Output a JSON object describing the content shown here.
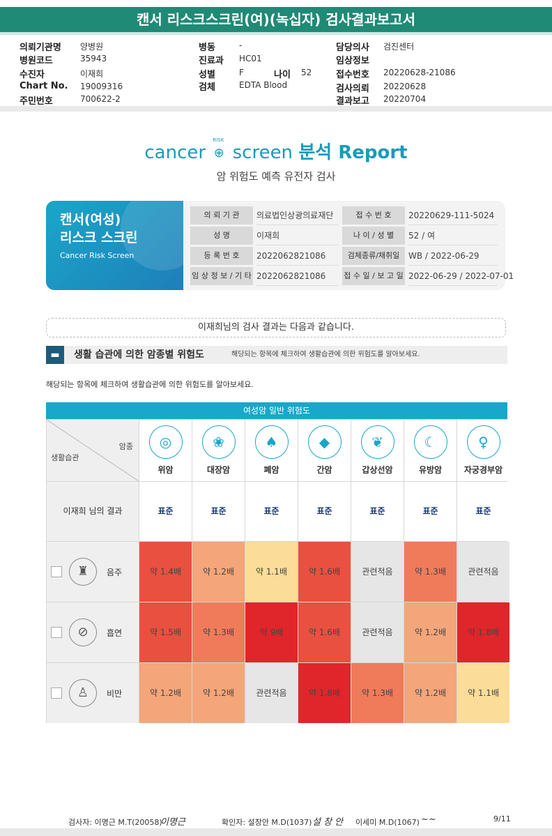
{
  "title": "캔서 리스크스크린(여)(녹십자) 검사결과보고서",
  "meta": [
    {
      "k": "의뢰기관명",
      "v": "양병원"
    },
    {
      "k": "병원코드",
      "v": "35943"
    },
    {
      "k": "수진자",
      "v": "이재희"
    },
    {
      "k": "Chart No.",
      "v": "19009316"
    },
    {
      "k": "주민번호",
      "v": "700622-2"
    },
    {
      "k": "병동",
      "v": "-"
    },
    {
      "k": "진료과",
      "v": "HC01"
    },
    {
      "k": "성별",
      "v": "F"
    },
    {
      "k": "나이",
      "v": "52"
    },
    {
      "k": "검체",
      "v": "EDTA Blood"
    },
    {
      "k": "담당의사",
      "v": "검진센터"
    },
    {
      "k": "임상정보",
      "v": ""
    },
    {
      "k": "접수번호",
      "v": "20220628-21086"
    },
    {
      "k": "검사의뢰",
      "v": "20220628"
    },
    {
      "k": "결과보고",
      "v": "20220704"
    }
  ],
  "logo": {
    "cancer": "cancer",
    "risk": "RISK",
    "screen": "screen",
    "suffix": "분석 Report"
  },
  "subtitle": "암 위험도 예측 유전자 검사",
  "badge": {
    "line1": "캔서(여성)",
    "line2": "리스크 스크린",
    "en": "Cancer Risk Screen"
  },
  "info": [
    {
      "label": "의 뢰 기 관",
      "value": "의료법인상광의료재단"
    },
    {
      "label": "접 수 번 호",
      "value": "20220629-111-5024"
    },
    {
      "label": "성 명",
      "value": "이재희"
    },
    {
      "label": "나 이 / 성 별",
      "value": "52 / 여"
    },
    {
      "label": "등 록 번 호",
      "value": "2022062821086"
    },
    {
      "label": "검체종류/채취일",
      "value": "WB / 2022-06-29"
    },
    {
      "label": "임 상 정 보 / 기 타",
      "value": "2022062821086"
    },
    {
      "label": "접 수 일 / 보 고 일",
      "value": "2022-06-29 / 2022-07-01"
    }
  ],
  "notice": "이재희님의 검사 결과는 다음과 같습니다.",
  "section": {
    "title": "생활 습관에 의한 암종별 위험도",
    "note": "해당되는 항목에 체크하여 생활습관에 의한 위험도를 알아보세요."
  },
  "intro": "해당되는 항목에 체크하여 생활습관에 의한 위험도를 알아보세요.",
  "table": {
    "header": "여성암 일반 위험도",
    "corner_top": "암종",
    "corner_bottom": "생활습관",
    "cancers": [
      {
        "name": "위암",
        "icon": "stomach-icon",
        "glyph": "◎"
      },
      {
        "name": "대장암",
        "icon": "intestine-icon",
        "glyph": "❀"
      },
      {
        "name": "폐암",
        "icon": "lungs-icon",
        "glyph": "♠"
      },
      {
        "name": "간암",
        "icon": "liver-icon",
        "glyph": "◆"
      },
      {
        "name": "갑상선암",
        "icon": "thyroid-icon",
        "glyph": "❦"
      },
      {
        "name": "유방암",
        "icon": "breast-icon",
        "glyph": "☾"
      },
      {
        "name": "자궁경부암",
        "icon": "uterus-icon",
        "glyph": "♀"
      }
    ],
    "result_label": "이재희 님의 결과",
    "results": [
      "표준",
      "표준",
      "표준",
      "표준",
      "표준",
      "표준",
      "표준"
    ],
    "rows": [
      {
        "name": "음주",
        "icon": "alcohol-icon",
        "glyph": "♜",
        "values": [
          "약 1.4배",
          "약 1.2배",
          "약 1.1배",
          "약 1.6배",
          "관련적음",
          "약 1.3배",
          "관련적음"
        ],
        "colors": [
          "#e9503f",
          "#f4a57a",
          "#fbdc98",
          "#e9503f",
          "#e6e6e6",
          "#ef7b5b",
          "#e6e6e6"
        ]
      },
      {
        "name": "흡연",
        "icon": "smoking-icon",
        "glyph": "⊘",
        "values": [
          "약 1.5배",
          "약 1.3배",
          "약 9배",
          "약 1.6배",
          "관련적음",
          "약 1.2배",
          "약 1.8배"
        ],
        "colors": [
          "#e9503f",
          "#ef7b5b",
          "#e0262a",
          "#e9503f",
          "#e6e6e6",
          "#f4a57a",
          "#e0262a"
        ]
      },
      {
        "name": "비만",
        "icon": "obesity-icon",
        "glyph": "♙",
        "values": [
          "약 1.2배",
          "약 1.2배",
          "관련적음",
          "약 1.8배",
          "약 1.3배",
          "약 1.2배",
          "약 1.1배"
        ],
        "colors": [
          "#f4a57a",
          "#f4a57a",
          "#e6e6e6",
          "#e0262a",
          "#ef7b5b",
          "#f4a57a",
          "#fbdc98"
        ]
      }
    ]
  },
  "footer": {
    "examiner": "검사자: 이명근 M.T(20058)",
    "examiner_sig": "이명근",
    "confirmer": "확인자: 설창안 M.D(1037)",
    "confirmer_sig": "설 창 안",
    "second": "이세미 M.D(1067)",
    "second_sig": "~~",
    "page": "9/11"
  }
}
